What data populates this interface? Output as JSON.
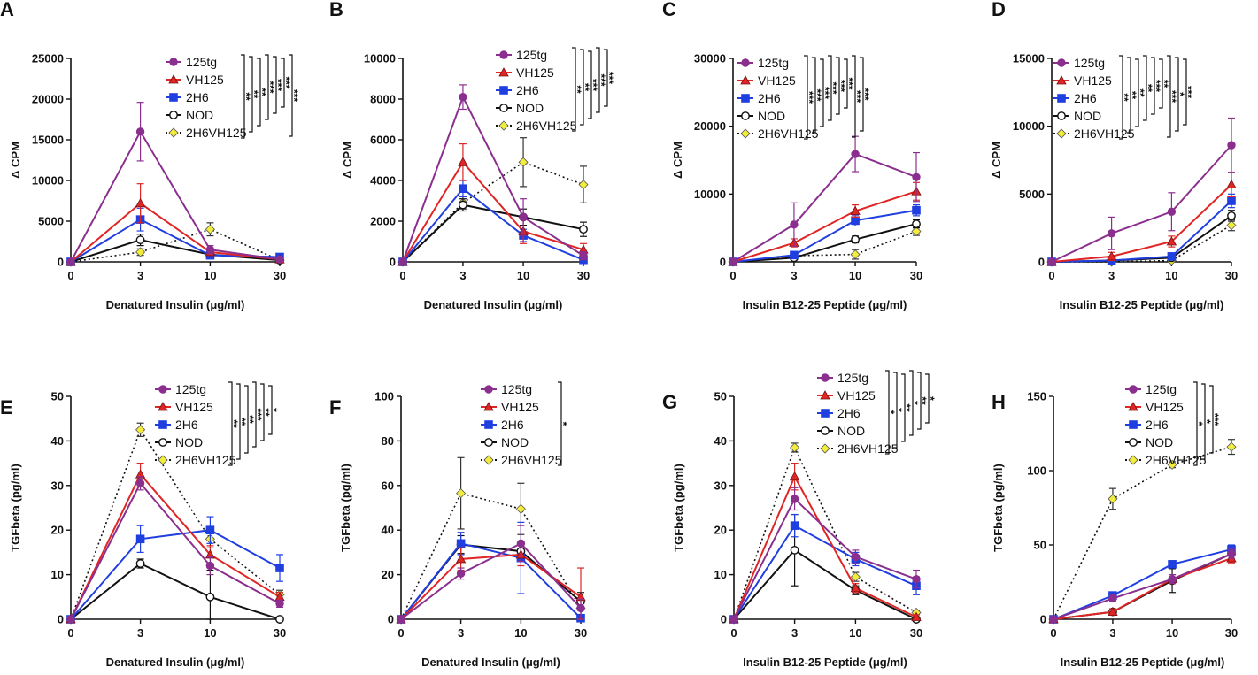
{
  "figure": {
    "legend_series": [
      "125tg",
      "VH125",
      "2H6",
      "NOD",
      "2H6VH125"
    ],
    "x_tick_labels": [
      "0",
      "3",
      "10",
      "30"
    ]
  },
  "series_styles": {
    "125tg": {
      "color": "#8B2F8F",
      "marker": "circle",
      "dashed": false
    },
    "VH125": {
      "color": "#E02525",
      "marker": "triangle",
      "dashed": false
    },
    "2H6": {
      "color": "#1F3FE0",
      "marker": "square",
      "dashed": false
    },
    "NOD": {
      "color": "#111111",
      "marker": "open-circle",
      "dashed": false
    },
    "2H6VH125": {
      "color": "#111111",
      "marker": "diamond",
      "dashed": true,
      "fill": "#F2EC3A"
    }
  },
  "chart_data": [
    {
      "panel": "A",
      "type": "line",
      "xlabel": "Denatured Insulin  (μg/ml)",
      "ylabel": "Δ CPM",
      "yticks": [
        0,
        5000,
        10000,
        15000,
        20000,
        25000
      ],
      "ylim": [
        0,
        25000
      ],
      "x": [
        "0",
        "3",
        "10",
        "30"
      ],
      "series": [
        {
          "name": "125tg",
          "values": [
            0,
            16000,
            1500,
            300
          ],
          "err": [
            0,
            3600,
            500,
            200
          ]
        },
        {
          "name": "VH125",
          "values": [
            0,
            7200,
            1200,
            300
          ],
          "err": [
            0,
            2400,
            400,
            150
          ]
        },
        {
          "name": "2H6",
          "values": [
            0,
            5200,
            800,
            600
          ],
          "err": [
            0,
            1400,
            300,
            200
          ]
        },
        {
          "name": "NOD",
          "values": [
            0,
            2700,
            900,
            200
          ],
          "err": [
            0,
            700,
            300,
            100
          ]
        },
        {
          "name": "2H6VH125",
          "values": [
            0,
            1200,
            4000,
            200
          ],
          "err": [
            0,
            400,
            800,
            100
          ]
        }
      ],
      "significance": [
        "**",
        "**",
        "**",
        "***",
        "***",
        "***",
        "***"
      ]
    },
    {
      "panel": "B",
      "type": "line",
      "xlabel": "Denatured Insulin  (μg/ml)",
      "ylabel": "Δ CPM",
      "yticks": [
        0,
        2000,
        4000,
        6000,
        8000,
        10000
      ],
      "ylim": [
        0,
        10000
      ],
      "x": [
        "0",
        "3",
        "10",
        "30"
      ],
      "series": [
        {
          "name": "125tg",
          "values": [
            0,
            8100,
            2200,
            300
          ],
          "err": [
            0,
            600,
            900,
            200
          ]
        },
        {
          "name": "VH125",
          "values": [
            0,
            4900,
            1500,
            600
          ],
          "err": [
            0,
            900,
            600,
            300
          ]
        },
        {
          "name": "2H6",
          "values": [
            0,
            3600,
            1300,
            100
          ],
          "err": [
            0,
            400,
            300,
            100
          ]
        },
        {
          "name": "NOD",
          "values": [
            0,
            2800,
            2200,
            1600
          ],
          "err": [
            0,
            300,
            400,
            350
          ]
        },
        {
          "name": "2H6VH125",
          "values": [
            0,
            2900,
            4900,
            3800
          ],
          "err": [
            0,
            300,
            1200,
            900
          ]
        }
      ],
      "significance": [
        "**",
        "**",
        "***",
        "***",
        "***"
      ]
    },
    {
      "panel": "C",
      "type": "line",
      "xlabel": "Insulin B12-25 Peptide (μg/ml)",
      "ylabel": "Δ CPM",
      "yticks": [
        0,
        10000,
        20000,
        30000
      ],
      "ylim": [
        0,
        30000
      ],
      "x": [
        "0",
        "3",
        "10",
        "30"
      ],
      "series": [
        {
          "name": "125tg",
          "values": [
            0,
            5500,
            15900,
            12500
          ],
          "err": [
            0,
            3200,
            2600,
            3600
          ]
        },
        {
          "name": "VH125",
          "values": [
            0,
            2800,
            7500,
            10400
          ],
          "err": [
            0,
            600,
            900,
            1300
          ]
        },
        {
          "name": "2H6",
          "values": [
            0,
            1000,
            6100,
            7600
          ],
          "err": [
            0,
            300,
            800,
            800
          ]
        },
        {
          "name": "NOD",
          "values": [
            0,
            600,
            3300,
            5600
          ],
          "err": [
            0,
            200,
            500,
            600
          ]
        },
        {
          "name": "2H6VH125",
          "values": [
            0,
            900,
            1100,
            4500
          ],
          "err": [
            0,
            300,
            700,
            600
          ]
        }
      ],
      "significance": [
        "***",
        "***",
        "***",
        "***",
        "***",
        "***",
        "***",
        "***"
      ]
    },
    {
      "panel": "D",
      "type": "line",
      "xlabel": "Insulin B12-25 Peptide (μg/ml)",
      "ylabel": "Δ CPM",
      "yticks": [
        0,
        5000,
        10000,
        15000
      ],
      "ylim": [
        0,
        15000
      ],
      "x": [
        "0",
        "3",
        "10",
        "30"
      ],
      "series": [
        {
          "name": "125tg",
          "values": [
            0,
            2100,
            3700,
            8600
          ],
          "err": [
            0,
            1200,
            1400,
            2000
          ]
        },
        {
          "name": "VH125",
          "values": [
            0,
            400,
            1500,
            5700
          ],
          "err": [
            0,
            300,
            400,
            900
          ]
        },
        {
          "name": "2H6",
          "values": [
            0,
            100,
            400,
            4500
          ],
          "err": [
            0,
            100,
            150,
            500
          ]
        },
        {
          "name": "NOD",
          "values": [
            0,
            100,
            300,
            3400
          ],
          "err": [
            0,
            100,
            150,
            400
          ]
        },
        {
          "name": "2H6VH125",
          "values": [
            0,
            0,
            100,
            2700
          ],
          "err": [
            0,
            50,
            80,
            400
          ]
        }
      ],
      "significance": [
        "**",
        "**",
        "**",
        "**",
        "***",
        "**",
        "***",
        "*",
        "***"
      ]
    },
    {
      "panel": "E",
      "type": "line",
      "xlabel": "Denatured Insulin  (μg/ml)",
      "ylabel": "TGFbeta (pg/ml)",
      "yticks": [
        0,
        10,
        20,
        30,
        40,
        50
      ],
      "ylim": [
        0,
        50
      ],
      "x": [
        "0",
        "3",
        "10",
        "30"
      ],
      "series": [
        {
          "name": "125tg",
          "values": [
            0,
            30.5,
            12,
            3.5
          ],
          "err": [
            0,
            1.5,
            2,
            0.8
          ]
        },
        {
          "name": "VH125",
          "values": [
            0,
            32.5,
            14.5,
            5
          ],
          "err": [
            0,
            2.5,
            2,
            1
          ]
        },
        {
          "name": "2H6",
          "values": [
            0,
            18,
            20,
            11.5
          ],
          "err": [
            0,
            3,
            3,
            3
          ]
        },
        {
          "name": "NOD",
          "values": [
            0,
            12.5,
            5,
            0
          ],
          "err": [
            0,
            1,
            6,
            0.5
          ]
        },
        {
          "name": "2H6VH125",
          "values": [
            0,
            42.5,
            18,
            5.5
          ],
          "err": [
            0,
            1.5,
            2,
            1
          ]
        }
      ],
      "significance": [
        "**",
        "**",
        "**",
        "***",
        "**",
        "*"
      ]
    },
    {
      "panel": "F",
      "type": "line",
      "xlabel": "Denatured Insulin  (μg/ml)",
      "ylabel": "TGFbeta (pg/ml)",
      "yticks": [
        0,
        20,
        40,
        60,
        80,
        100
      ],
      "ylim": [
        0,
        100
      ],
      "x": [
        "0",
        "3",
        "10",
        "30"
      ],
      "series": [
        {
          "name": "125tg",
          "values": [
            0,
            20.5,
            34,
            5
          ],
          "err": [
            0,
            2.5,
            8,
            4
          ]
        },
        {
          "name": "VH125",
          "values": [
            0,
            27,
            29,
            10
          ],
          "err": [
            0,
            5,
            5,
            13
          ]
        },
        {
          "name": "2H6",
          "values": [
            0,
            34,
            27.5,
            0.5
          ],
          "err": [
            0,
            5,
            16,
            1
          ]
        },
        {
          "name": "NOD",
          "values": [
            0,
            33.5,
            30.5,
            8
          ],
          "err": [
            0,
            4,
            4,
            4
          ]
        },
        {
          "name": "2H6VH125",
          "values": [
            0,
            56.5,
            49.5,
            5
          ],
          "err": [
            0,
            16,
            11.5,
            3
          ]
        }
      ],
      "significance": [
        "*"
      ]
    },
    {
      "panel": "G",
      "type": "line",
      "xlabel": "Insulin B12-25 Peptide (μg/ml)",
      "ylabel": "TGFbeta (pg/ml)",
      "yticks": [
        0,
        10,
        20,
        30,
        40,
        50
      ],
      "ylim": [
        0,
        50
      ],
      "x": [
        "0",
        "3",
        "10",
        "30"
      ],
      "series": [
        {
          "name": "125tg",
          "values": [
            0,
            27,
            14,
            9
          ],
          "err": [
            0,
            2.5,
            1.5,
            2
          ]
        },
        {
          "name": "VH125",
          "values": [
            0,
            32,
            7,
            0.5
          ],
          "err": [
            0,
            3,
            1,
            0.5
          ]
        },
        {
          "name": "2H6",
          "values": [
            0,
            21,
            13.5,
            7.5
          ],
          "err": [
            0,
            2.5,
            1.5,
            2
          ]
        },
        {
          "name": "NOD",
          "values": [
            0,
            15.5,
            6.5,
            0
          ],
          "err": [
            0,
            8,
            1,
            0.3
          ]
        },
        {
          "name": "2H6VH125",
          "values": [
            0,
            38.5,
            9.5,
            1.5
          ],
          "err": [
            0,
            1,
            1,
            0.5
          ]
        }
      ],
      "significance": [
        "*",
        "*",
        "**",
        "*",
        "**",
        "*"
      ]
    },
    {
      "panel": "H",
      "type": "line",
      "xlabel": "Insulin B12-25 Peptide (μg/ml)",
      "ylabel": "TGFbeta (pg/ml)",
      "yticks": [
        0,
        50,
        100,
        150
      ],
      "ylim": [
        0,
        150
      ],
      "x": [
        "0",
        "3",
        "10",
        "30"
      ],
      "series": [
        {
          "name": "125tg",
          "values": [
            0,
            14,
            27,
            44
          ],
          "err": [
            0,
            2,
            3,
            3
          ]
        },
        {
          "name": "VH125",
          "values": [
            0,
            5,
            27,
            41
          ],
          "err": [
            0,
            2,
            3,
            3
          ]
        },
        {
          "name": "2H6",
          "values": [
            0,
            16,
            37,
            47
          ],
          "err": [
            0,
            2,
            2,
            3
          ]
        },
        {
          "name": "NOD",
          "values": [
            0,
            5,
            26,
            44
          ],
          "err": [
            0,
            2,
            8,
            3
          ]
        },
        {
          "name": "2H6VH125",
          "values": [
            0,
            81,
            104,
            116
          ],
          "err": [
            0,
            7,
            2,
            5
          ]
        }
      ],
      "significance": [
        "*",
        "*",
        "***"
      ]
    }
  ]
}
